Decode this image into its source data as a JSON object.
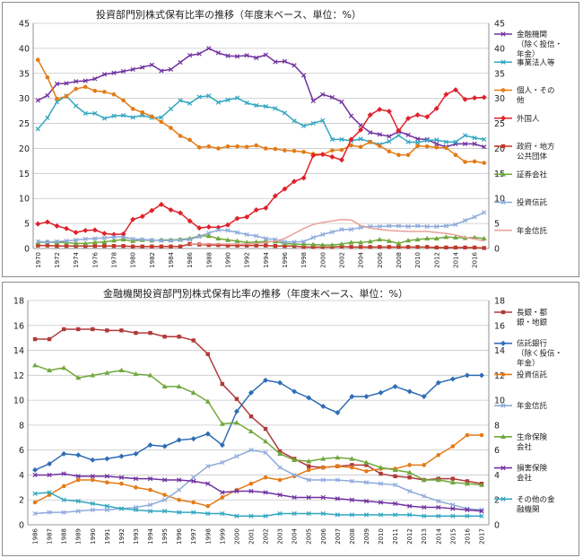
{
  "chart_data": [
    {
      "type": "line",
      "title": "投資部門別株式保有比率の推移（年度末ベース、単位：%）",
      "x": [
        1970,
        1971,
        1972,
        1973,
        1974,
        1975,
        1976,
        1977,
        1978,
        1979,
        1980,
        1981,
        1982,
        1983,
        1984,
        1985,
        1986,
        1987,
        1988,
        1989,
        1990,
        1991,
        1992,
        1993,
        1994,
        1995,
        1996,
        1997,
        1998,
        1999,
        2000,
        2001,
        2002,
        2003,
        2004,
        2005,
        2006,
        2007,
        2008,
        2009,
        2010,
        2011,
        2012,
        2013,
        2014,
        2015,
        2016,
        2017
      ],
      "xtick_labels": [
        "1970",
        "1972",
        "1974",
        "1976",
        "1978",
        "1980",
        "1982",
        "1984",
        "1986",
        "1988",
        "1990",
        "1992",
        "1994",
        "1996",
        "1998",
        "2000",
        "2002",
        "2004",
        "2006",
        "2008",
        "2010",
        "2012",
        "2014",
        "2016"
      ],
      "left_axis": {
        "min": 0,
        "max": 45,
        "step": 5,
        "ticks": [
          "0",
          "5",
          "10",
          "15",
          "20",
          "25",
          "30",
          "35",
          "40",
          "45"
        ]
      },
      "right_axis": {
        "min": 0,
        "max": 45,
        "step": 5,
        "ticks": [
          "0",
          "5",
          "10",
          "15",
          "20",
          "25",
          "30",
          "35",
          "40",
          "45"
        ]
      },
      "legend_position": "right",
      "series": [
        {
          "name": "金融機関（除く投信・年金）",
          "legend_lines": [
            "金融機関",
            "（除く投信・",
            "年金）"
          ],
          "color": "#7030a0",
          "marker": "x",
          "values": [
            29.6,
            30.6,
            32.9,
            33.0,
            33.4,
            33.5,
            33.9,
            34.8,
            35.1,
            35.4,
            35.8,
            36.2,
            36.7,
            35.5,
            35.8,
            37.2,
            38.6,
            38.9,
            40.0,
            39.1,
            38.5,
            38.4,
            38.6,
            38.1,
            38.7,
            37.3,
            37.4,
            36.6,
            34.6,
            29.5,
            30.8,
            30.2,
            29.3,
            26.5,
            24.6,
            23.2,
            22.8,
            22.4,
            23.4,
            22.7,
            21.9,
            21.8,
            20.9,
            20.3,
            20.9,
            20.9,
            20.9,
            20.3
          ]
        },
        {
          "name": "事業法人等",
          "legend_lines": [
            "事業法人等"
          ],
          "color": "#31a6c0",
          "marker": "x",
          "values": [
            23.9,
            26.1,
            29.3,
            30.5,
            28.5,
            27.0,
            27.0,
            26.0,
            26.5,
            26.6,
            26.2,
            26.6,
            26.1,
            26.2,
            27.9,
            29.6,
            29.0,
            30.3,
            30.5,
            29.2,
            29.7,
            30.1,
            29.1,
            28.6,
            28.4,
            28.0,
            27.1,
            25.5,
            24.5,
            25.0,
            25.6,
            21.8,
            21.8,
            21.5,
            21.9,
            21.3,
            20.8,
            21.4,
            22.6,
            21.3,
            21.2,
            21.6,
            21.7,
            21.3,
            21.3,
            22.6,
            22.1,
            21.8
          ]
        },
        {
          "name": "個人・その他",
          "legend_lines": [
            "個人・その",
            "他"
          ],
          "color": "#e47b17",
          "marker": "circle",
          "values": [
            37.7,
            34.2,
            29.9,
            30.4,
            31.9,
            32.3,
            31.5,
            31.3,
            30.8,
            29.6,
            27.9,
            27.2,
            26.4,
            25.3,
            24.1,
            22.5,
            21.7,
            20.2,
            20.4,
            20.0,
            20.4,
            20.4,
            20.3,
            20.6,
            20.0,
            19.9,
            19.6,
            19.5,
            19.3,
            18.9,
            18.8,
            19.6,
            19.7,
            20.6,
            20.3,
            21.3,
            20.5,
            19.4,
            18.7,
            18.7,
            20.5,
            20.4,
            20.2,
            20.1,
            18.7,
            17.3,
            17.4,
            17.1
          ]
        },
        {
          "name": "外国人",
          "legend_lines": [
            "外国人"
          ],
          "color": "#e0202a",
          "marker": "diamond",
          "values": [
            4.9,
            5.3,
            4.5,
            4.0,
            3.2,
            3.6,
            3.7,
            3.0,
            2.8,
            2.9,
            5.8,
            6.4,
            7.6,
            8.8,
            7.7,
            7.1,
            5.5,
            4.1,
            4.3,
            4.2,
            4.7,
            6.0,
            6.3,
            7.7,
            8.1,
            10.5,
            11.9,
            13.4,
            14.1,
            18.6,
            18.8,
            18.3,
            17.7,
            21.8,
            23.7,
            26.7,
            27.8,
            27.4,
            23.5,
            26.0,
            26.7,
            26.3,
            28.0,
            30.8,
            31.7,
            29.8,
            30.1,
            30.2
          ]
        },
        {
          "name": "政府・地方公共団体",
          "legend_lines": [
            "政府・地方",
            "公共団体"
          ],
          "color": "#c0392b",
          "marker": "square",
          "values": [
            0.6,
            0.6,
            0.5,
            0.5,
            0.5,
            0.5,
            0.5,
            0.5,
            0.5,
            0.5,
            0.4,
            0.4,
            0.4,
            0.4,
            0.4,
            0.4,
            0.9,
            0.8,
            0.7,
            0.7,
            0.6,
            0.6,
            0.6,
            0.6,
            0.6,
            0.5,
            0.5,
            0.5,
            0.3,
            0.3,
            0.3,
            0.3,
            0.4,
            0.3,
            0.3,
            0.3,
            0.3,
            0.3,
            0.3,
            0.3,
            0.3,
            0.3,
            0.2,
            0.2,
            0.2,
            0.2,
            0.2,
            0.1
          ]
        },
        {
          "name": "証券会社",
          "legend_lines": [
            "証券会社"
          ],
          "color": "#71a73d",
          "marker": "triangle",
          "values": [
            1.2,
            1.3,
            1.2,
            1.2,
            1.0,
            1.0,
            1.2,
            1.3,
            1.6,
            1.8,
            1.5,
            1.7,
            1.6,
            1.7,
            1.7,
            1.8,
            2.0,
            2.5,
            2.5,
            2.0,
            1.7,
            1.5,
            1.2,
            1.3,
            1.4,
            1.4,
            1.0,
            0.9,
            0.8,
            0.8,
            0.7,
            0.7,
            0.9,
            1.2,
            1.2,
            1.4,
            1.8,
            1.5,
            1.0,
            1.6,
            1.8,
            2.0,
            2.0,
            2.3,
            2.2,
            2.1,
            2.2,
            2.0
          ]
        },
        {
          "name": "投資信託",
          "legend_lines": [
            "投資信託"
          ],
          "color": "#8eaadb",
          "marker": "x",
          "values": [
            1.4,
            1.3,
            1.4,
            1.5,
            1.7,
            1.9,
            2.0,
            2.1,
            2.3,
            2.3,
            1.9,
            1.8,
            1.7,
            1.6,
            1.6,
            1.7,
            1.8,
            2.4,
            3.1,
            3.7,
            3.6,
            3.2,
            2.8,
            2.5,
            2.0,
            1.8,
            1.3,
            1.3,
            1.4,
            2.2,
            2.8,
            3.3,
            3.8,
            3.8,
            4.2,
            4.4,
            4.4,
            4.5,
            4.5,
            4.4,
            4.5,
            4.4,
            4.4,
            4.5,
            4.8,
            5.6,
            6.3,
            7.2
          ]
        },
        {
          "name": "年金信託",
          "legend_lines": [
            "年金信託"
          ],
          "color": "#e8a09b",
          "marker": "none",
          "values": [
            null,
            null,
            null,
            null,
            null,
            null,
            null,
            null,
            null,
            null,
            null,
            null,
            null,
            null,
            null,
            null,
            0.9,
            0.9,
            0.9,
            0.9,
            0.9,
            0.9,
            0.9,
            1.0,
            1.2,
            1.5,
            2.0,
            3.0,
            4.0,
            4.8,
            5.2,
            5.5,
            5.8,
            5.7,
            4.6,
            4.1,
            3.8,
            3.6,
            3.5,
            3.4,
            3.4,
            3.4,
            3.2,
            3.0,
            2.7,
            2.2,
            1.9,
            1.5
          ]
        }
      ]
    },
    {
      "type": "line",
      "title": "金融機関投資部門別株式保有比率の推移（年度末ベース、単位：%）",
      "x": [
        1986,
        1987,
        1988,
        1989,
        1990,
        1991,
        1992,
        1993,
        1994,
        1995,
        1996,
        1997,
        1998,
        1999,
        2000,
        2001,
        2002,
        2003,
        2004,
        2005,
        2006,
        2007,
        2008,
        2009,
        2010,
        2011,
        2012,
        2013,
        2014,
        2015,
        2016,
        2017
      ],
      "xtick_labels": [
        "1986",
        "1987",
        "1988",
        "1989",
        "1990",
        "1991",
        "1992",
        "1993",
        "1994",
        "1995",
        "1996",
        "1997",
        "1998",
        "1999",
        "2000",
        "2001",
        "2002",
        "2003",
        "2004",
        "2005",
        "2006",
        "2007",
        "2008",
        "2009",
        "2010",
        "2011",
        "2012",
        "2013",
        "2014",
        "2015",
        "2016",
        "2017"
      ],
      "left_axis": {
        "min": 0,
        "max": 18,
        "step": 2,
        "ticks": [
          "0",
          "2",
          "4",
          "6",
          "8",
          "10",
          "12",
          "14",
          "16",
          "18"
        ]
      },
      "right_axis": {
        "min": 0,
        "max": 18,
        "step": 2,
        "ticks": [
          "0",
          "2",
          "4",
          "6",
          "8",
          "10",
          "12",
          "14",
          "16",
          "18"
        ]
      },
      "legend_position": "right",
      "series": [
        {
          "name": "長銀・都銀・地銀",
          "legend_lines": [
            "長銀・都",
            "銀・地銀"
          ],
          "color": "#b03a3a",
          "marker": "square",
          "values": [
            14.9,
            14.9,
            15.7,
            15.7,
            15.7,
            15.6,
            15.6,
            15.4,
            15.4,
            15.1,
            15.1,
            14.8,
            13.7,
            11.3,
            10.1,
            8.7,
            7.7,
            5.9,
            5.3,
            4.7,
            4.6,
            4.7,
            4.8,
            4.8,
            4.1,
            3.9,
            3.8,
            3.6,
            3.7,
            3.7,
            3.5,
            3.3
          ]
        },
        {
          "name": "信託銀行（除く投信・年金）",
          "legend_lines": [
            "信託銀行",
            "（除く投信・",
            "年金）"
          ],
          "color": "#2f6db5",
          "marker": "diamond",
          "values": [
            4.4,
            4.9,
            5.7,
            5.6,
            5.2,
            5.3,
            5.5,
            5.7,
            6.4,
            6.3,
            6.8,
            6.9,
            7.3,
            6.4,
            9.1,
            10.6,
            11.6,
            11.4,
            10.7,
            10.2,
            9.5,
            9.0,
            10.3,
            10.3,
            10.6,
            11.1,
            10.7,
            10.3,
            11.4,
            11.7,
            12.0,
            12.0
          ]
        },
        {
          "name": "投資信託",
          "legend_lines": [
            "投資信託"
          ],
          "color": "#e47b17",
          "marker": "circle",
          "values": [
            1.8,
            2.4,
            3.1,
            3.6,
            3.6,
            3.4,
            3.3,
            3.0,
            2.8,
            2.4,
            2.0,
            1.8,
            1.5,
            2.2,
            2.8,
            3.3,
            3.8,
            3.6,
            3.9,
            4.4,
            4.6,
            4.7,
            4.6,
            4.3,
            4.5,
            4.5,
            4.8,
            4.8,
            5.6,
            6.3,
            7.2,
            7.2
          ]
        },
        {
          "name": "年金信託",
          "legend_lines": [
            "年金信託"
          ],
          "color": "#8eaadb",
          "marker": "x",
          "values": [
            0.9,
            1.0,
            1.0,
            1.1,
            1.2,
            1.2,
            1.3,
            1.4,
            1.6,
            2.0,
            2.8,
            3.8,
            4.7,
            5.0,
            5.5,
            6.0,
            5.8,
            4.6,
            4.0,
            3.6,
            3.6,
            3.6,
            3.5,
            3.4,
            3.3,
            3.2,
            2.7,
            2.3,
            1.9,
            1.6,
            1.3,
            1.2
          ]
        },
        {
          "name": "生命保険会社",
          "legend_lines": [
            "生命保険",
            "会社"
          ],
          "color": "#71a73d",
          "marker": "triangle",
          "values": [
            12.8,
            12.4,
            12.6,
            11.8,
            12.0,
            12.2,
            12.4,
            12.1,
            12.0,
            11.1,
            11.1,
            10.6,
            9.9,
            8.1,
            8.2,
            7.5,
            6.7,
            5.7,
            5.2,
            5.1,
            5.3,
            5.4,
            5.3,
            5.0,
            4.6,
            4.4,
            4.2,
            3.6,
            3.6,
            3.4,
            3.3,
            3.2
          ]
        },
        {
          "name": "損害保険会社",
          "legend_lines": [
            "損害保険",
            "会社"
          ],
          "color": "#7030a0",
          "marker": "x",
          "values": [
            4.0,
            4.0,
            4.1,
            3.9,
            3.9,
            3.9,
            3.8,
            3.7,
            3.7,
            3.6,
            3.6,
            3.5,
            3.3,
            2.6,
            2.7,
            2.7,
            2.6,
            2.4,
            2.2,
            2.2,
            2.2,
            2.1,
            2.0,
            1.9,
            1.8,
            1.7,
            1.5,
            1.4,
            1.4,
            1.3,
            1.2,
            1.1
          ]
        },
        {
          "name": "その他の金融機関",
          "legend_lines": [
            "その他の金",
            "融機関"
          ],
          "color": "#31a6c0",
          "marker": "x",
          "values": [
            2.5,
            2.6,
            2.0,
            1.9,
            1.7,
            1.5,
            1.3,
            1.2,
            1.1,
            1.1,
            1.0,
            1.0,
            0.9,
            0.9,
            0.7,
            0.7,
            0.7,
            0.9,
            0.9,
            0.9,
            0.9,
            0.8,
            0.8,
            0.8,
            0.8,
            0.8,
            0.8,
            0.7,
            0.7,
            0.7,
            0.7,
            0.7
          ]
        }
      ]
    }
  ]
}
